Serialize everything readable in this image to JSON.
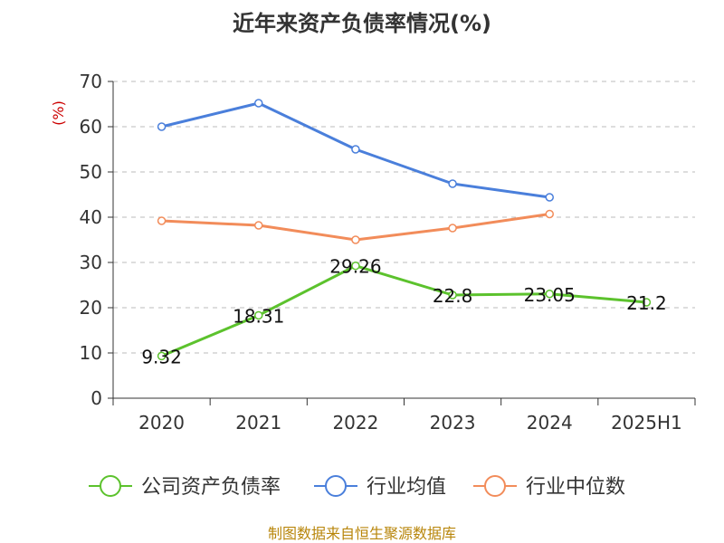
{
  "chart_data": {
    "type": "line",
    "title": "近年来资产负债率情况(%)",
    "unit_label": "(%)",
    "categories": [
      "2020",
      "2021",
      "2022",
      "2023",
      "2024",
      "2025H1"
    ],
    "ylim": [
      0,
      70
    ],
    "yticks": [
      0,
      10,
      20,
      30,
      40,
      50,
      60,
      70
    ],
    "grid": true,
    "legend_position": "bottom",
    "series": [
      {
        "name": "公司资产负债率",
        "color": "#5cc22d",
        "values": [
          9.32,
          18.31,
          29.26,
          22.8,
          23.05,
          21.2
        ],
        "labels": [
          "9.32",
          "18.31",
          "29.26",
          "22.8",
          "23.05",
          "21.2"
        ]
      },
      {
        "name": "行业均值",
        "color": "#4a7fdb",
        "values": [
          60,
          65.2,
          55,
          47.4,
          44.4,
          null
        ]
      },
      {
        "name": "行业中位数",
        "color": "#f28c5a",
        "values": [
          39.2,
          38.2,
          35,
          37.6,
          40.7,
          null
        ]
      }
    ]
  },
  "source": "制图数据来自恒生聚源数据库"
}
